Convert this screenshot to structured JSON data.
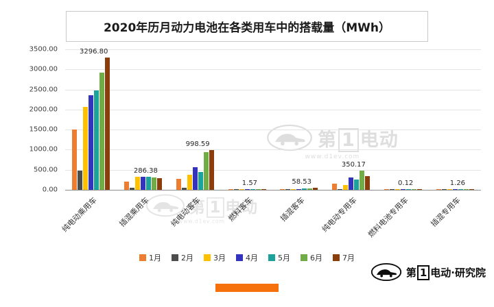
{
  "title": "2020年历月动力电池在各类用车中的搭载量（MWh）",
  "chart_data": {
    "type": "bar",
    "title": "2020年历月动力电池在各类用车中的搭载量（MWh）",
    "unit": "MWh",
    "categories": [
      "纯电动乘用车",
      "插混乘用车",
      "纯电动客车",
      "燃料客车",
      "插混客车",
      "纯电动专用车",
      "燃料电池专用车",
      "插混专用车"
    ],
    "series": [
      {
        "name": "1月",
        "color": "#ED7D31",
        "values": [
          1500,
          205,
          275,
          12,
          18,
          155,
          4,
          3
        ]
      },
      {
        "name": "2月",
        "color": "#4D4D4D",
        "values": [
          480,
          50,
          55,
          3,
          6,
          22,
          1,
          1
        ]
      },
      {
        "name": "3月",
        "color": "#FFC000",
        "values": [
          2060,
          325,
          375,
          18,
          14,
          120,
          3,
          4
        ]
      },
      {
        "name": "4月",
        "color": "#3333BE",
        "values": [
          2350,
          330,
          560,
          10,
          22,
          305,
          8,
          6
        ]
      },
      {
        "name": "5月",
        "color": "#1BA29A",
        "values": [
          2480,
          330,
          445,
          25,
          28,
          258,
          10,
          8
        ]
      },
      {
        "name": "6月",
        "color": "#70AD47",
        "values": [
          2920,
          310,
          940,
          15,
          35,
          480,
          12,
          10
        ]
      },
      {
        "name": "7月",
        "color": "#8C3D0C",
        "values": [
          3296.8,
          286.38,
          998.59,
          1.57,
          58.53,
          350.17,
          0.12,
          1.26
        ]
      }
    ],
    "data_labels": [
      "3296.80",
      "286.38",
      "998.59",
      "1.57",
      "58.53",
      "350.17",
      "0.12",
      "1.26"
    ],
    "data_labels_on_series": "7月",
    "ylim": [
      0,
      3500
    ],
    "yticks": [
      "3500.00",
      "3000.00",
      "2500.00",
      "2000.00",
      "1500.00",
      "1000.00",
      "500.00",
      "0.00"
    ],
    "grid": true,
    "legend_position": "bottom"
  },
  "watermark": {
    "brand_pre": "第",
    "brand_one": "1",
    "brand_post": "电动",
    "url": "www.d1ev.com"
  },
  "footer": {
    "brand_pre": "第",
    "brand_one": "1",
    "brand_post": "电动",
    "suffix": "·研究院"
  },
  "colors": {
    "accent_bar": "#F6710B"
  }
}
